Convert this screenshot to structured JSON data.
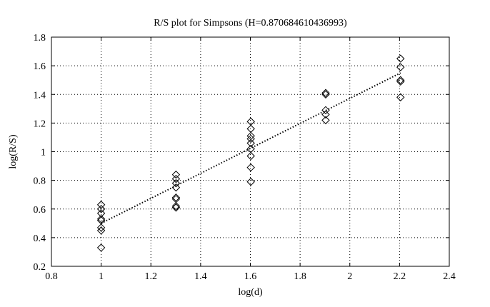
{
  "chart_data": {
    "type": "scatter",
    "title": "R/S plot for Simpsons (H=0.870684610436993)",
    "xlabel": "log(d)",
    "ylabel": "log(R/S)",
    "xlim": [
      0.8,
      2.4
    ],
    "ylim": [
      0.2,
      1.8
    ],
    "xticks": [
      "0.8",
      "1",
      "1.2",
      "1.4",
      "1.6",
      "1.8",
      "2",
      "2.2",
      "2.4"
    ],
    "yticks": [
      "0.2",
      "0.4",
      "0.6",
      "0.8",
      "1",
      "1.2",
      "1.4",
      "1.6",
      "1.8"
    ],
    "grid": true,
    "marker": "diamond",
    "series": [
      {
        "kind": "points",
        "x": [
          1,
          1,
          1,
          1,
          1,
          1,
          1,
          1,
          1.301,
          1.301,
          1.301,
          1.301,
          1.301,
          1.301,
          1.301,
          1.301,
          1.602,
          1.602,
          1.602,
          1.602,
          1.602,
          1.602,
          1.602,
          1.602,
          1.602,
          1.903,
          1.903,
          1.903,
          1.903,
          1.903,
          2.204,
          2.204,
          2.204,
          2.204,
          2.204
        ],
        "y": [
          0.33,
          0.45,
          0.47,
          0.52,
          0.53,
          0.57,
          0.6,
          0.63,
          0.61,
          0.62,
          0.67,
          0.68,
          0.75,
          0.78,
          0.81,
          0.84,
          0.79,
          0.89,
          0.97,
          1.02,
          1.06,
          1.09,
          1.11,
          1.16,
          1.21,
          1.22,
          1.26,
          1.29,
          1.4,
          1.41,
          1.38,
          1.49,
          1.5,
          1.59,
          1.65
        ]
      },
      {
        "kind": "fit-line",
        "x": [
          1,
          2.204
        ],
        "y": [
          0.5,
          1.55
        ]
      }
    ]
  }
}
